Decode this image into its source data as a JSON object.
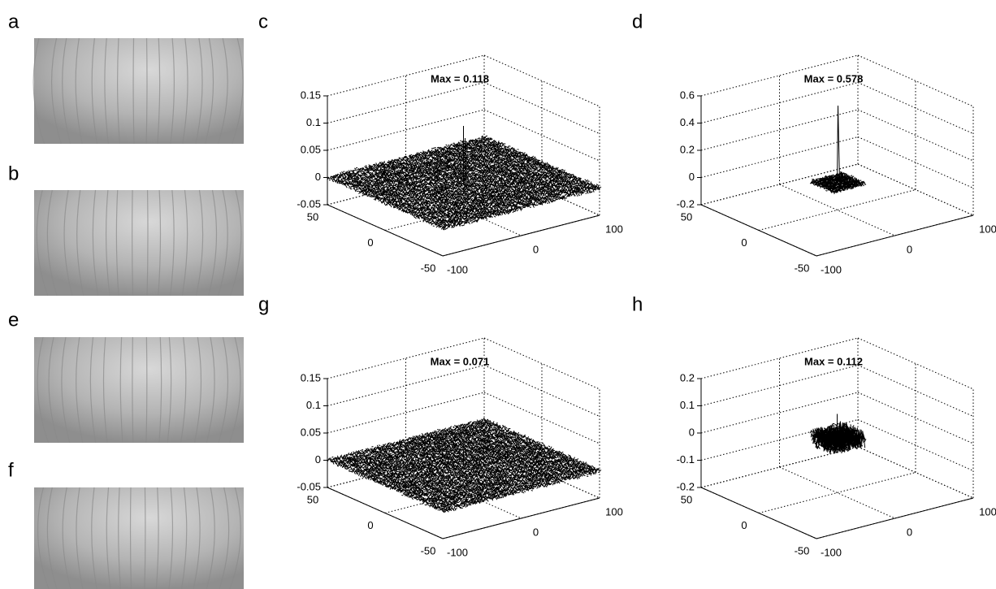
{
  "images": [
    {
      "label": "a"
    },
    {
      "label": "b"
    },
    {
      "label": "e"
    },
    {
      "label": "f"
    }
  ],
  "plots": [
    {
      "label": "c",
      "title": "Max = 0.118",
      "zticks": [
        "0.15",
        "0.1",
        "0.05",
        "0",
        "-0.05"
      ],
      "yticks": [
        "50",
        "0",
        "-50"
      ],
      "xticks": [
        "-100",
        "0",
        "100"
      ]
    },
    {
      "label": "d",
      "title": "Max = 0.578",
      "zticks": [
        "0.6",
        "0.4",
        "0.2",
        "0",
        "-0.2"
      ],
      "yticks": [
        "50",
        "0",
        "-50"
      ],
      "xticks": [
        "-100",
        "0",
        "100"
      ]
    },
    {
      "label": "g",
      "title": "Max = 0.071",
      "zticks": [
        "0.15",
        "0.1",
        "0.05",
        "0",
        "-0.05"
      ],
      "yticks": [
        "50",
        "0",
        "-50"
      ],
      "xticks": [
        "-100",
        "0",
        "100"
      ]
    },
    {
      "label": "h",
      "title": "Max = 0.112",
      "zticks": [
        "0.2",
        "0.1",
        "0",
        "-0.1",
        "-0.2"
      ],
      "yticks": [
        "50",
        "0",
        "-50"
      ],
      "xticks": [
        "-100",
        "0",
        "100"
      ]
    }
  ]
}
